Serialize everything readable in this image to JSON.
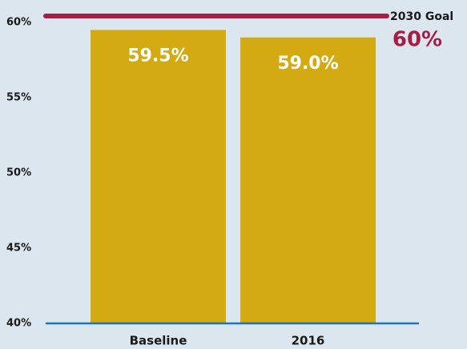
{
  "chart_data": {
    "type": "bar",
    "categories": [
      "Baseline",
      "2016"
    ],
    "values": [
      59.5,
      59.0
    ],
    "value_labels": [
      "59.5%",
      "59.0%"
    ],
    "color": "#d4aa12",
    "ylim": [
      40,
      60
    ],
    "yticks": [
      {
        "value": 40,
        "label": "40%"
      },
      {
        "value": 45,
        "label": "45%"
      },
      {
        "value": 50,
        "label": "50%"
      },
      {
        "value": 55,
        "label": "55%"
      },
      {
        "value": 60,
        "label": "60%"
      }
    ],
    "grid": false,
    "goal": {
      "value": 60,
      "label": "2030 Goal",
      "value_label": "60%",
      "color": "#a51e45"
    },
    "axis_color": "#1a75bb"
  }
}
